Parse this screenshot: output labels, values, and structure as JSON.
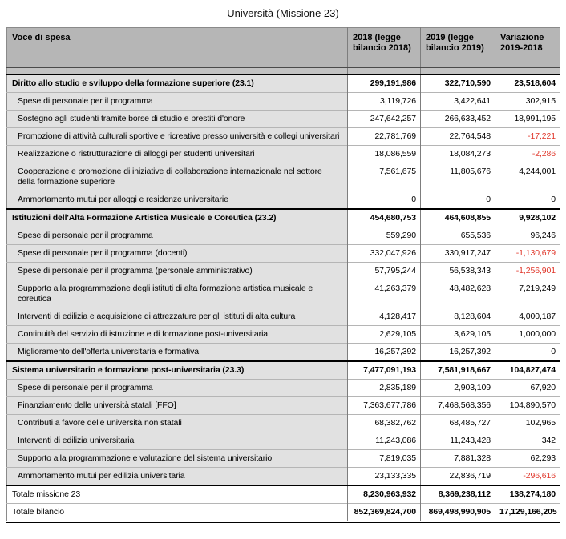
{
  "title": "Università (Missione 23)",
  "colors": {
    "negative_value": "#e0382c",
    "header_background": "#b6b6b6",
    "label_column_background": "#e1e1e1",
    "spacer_row_background": "#c2c2c2"
  },
  "table": {
    "columns": [
      "Voce di spesa",
      "2018 (legge bilancio 2018)",
      "2019 (legge bilancio 2019)",
      "Variazione 2019-2018"
    ],
    "rows": [
      {
        "type": "section",
        "label": "Diritto allo studio e sviluppo della formazione superiore (23.1)",
        "v2018": "299,191,986",
        "v2019": "322,710,590",
        "variazione": "23,518,604"
      },
      {
        "type": "item",
        "label": "Spese di personale per il programma",
        "v2018": "3,119,726",
        "v2019": "3,422,641",
        "variazione": "302,915"
      },
      {
        "type": "item",
        "label": "Sostegno agli studenti tramite borse di studio e prestiti d'onore",
        "v2018": "247,642,257",
        "v2019": "266,633,452",
        "variazione": "18,991,195"
      },
      {
        "type": "item",
        "label": "Promozione di attività culturali  sportive e ricreative presso università e collegi universitari",
        "v2018": "22,781,769",
        "v2019": "22,764,548",
        "variazione": "-17,221"
      },
      {
        "type": "item",
        "label": "Realizzazione o ristrutturazione di alloggi per studenti universitari",
        "v2018": "18,086,559",
        "v2019": "18,084,273",
        "variazione": "-2,286"
      },
      {
        "type": "item",
        "label": "Cooperazione e promozione di iniziative di collaborazione internazionale nel settore della formazione superiore",
        "v2018": "7,561,675",
        "v2019": "11,805,676",
        "variazione": "4,244,001"
      },
      {
        "type": "item",
        "label": "Ammortamento mutui per alloggi e residenze universitarie",
        "v2018": "0",
        "v2019": "0",
        "variazione": "0"
      },
      {
        "type": "section",
        "label": "Istituzioni dell'Alta Formazione Artistica Musicale e Coreutica (23.2)",
        "v2018": "454,680,753",
        "v2019": "464,608,855",
        "variazione": "9,928,102"
      },
      {
        "type": "item",
        "label": "Spese di personale per il programma",
        "v2018": "559,290",
        "v2019": "655,536",
        "variazione": "96,246"
      },
      {
        "type": "item",
        "label": "Spese di personale per il programma (docenti)",
        "v2018": "332,047,926",
        "v2019": "330,917,247",
        "variazione": "-1,130,679"
      },
      {
        "type": "item",
        "label": "Spese di personale per il programma (personale amministrativo)",
        "v2018": "57,795,244",
        "v2019": "56,538,343",
        "variazione": "-1,256,901"
      },
      {
        "type": "item",
        "label": "Supporto alla programmazione degli istituti di alta formazione artistica musicale e coreutica",
        "v2018": "41,263,379",
        "v2019": "48,482,628",
        "variazione": "7,219,249"
      },
      {
        "type": "item",
        "label": "Interventi di edilizia e acquisizione di attrezzature per gli istituti di alta cultura",
        "v2018": "4,128,417",
        "v2019": "8,128,604",
        "variazione": "4,000,187"
      },
      {
        "type": "item",
        "label": "Continuità del servizio di istruzione e di formazione post-universitaria",
        "v2018": "2,629,105",
        "v2019": "3,629,105",
        "variazione": "1,000,000"
      },
      {
        "type": "item",
        "label": "Miglioramento dell'offerta universitaria e formativa",
        "v2018": "16,257,392",
        "v2019": "16,257,392",
        "variazione": "0"
      },
      {
        "type": "section",
        "label": "Sistema universitario e formazione post-universitaria (23.3)",
        "v2018": "7,477,091,193",
        "v2019": "7,581,918,667",
        "variazione": "104,827,474"
      },
      {
        "type": "item",
        "label": "Spese di personale per il programma",
        "v2018": "2,835,189",
        "v2019": "2,903,109",
        "variazione": "67,920"
      },
      {
        "type": "item",
        "label": "Finanziamento delle università statali [FFO]",
        "v2018": "7,363,677,786",
        "v2019": "7,468,568,356",
        "variazione": "104,890,570"
      },
      {
        "type": "item",
        "label": "Contributi a favore delle università non statali",
        "v2018": "68,382,762",
        "v2019": "68,485,727",
        "variazione": "102,965"
      },
      {
        "type": "item",
        "label": "Interventi di edilizia universitaria",
        "v2018": "11,243,086",
        "v2019": "11,243,428",
        "variazione": "342"
      },
      {
        "type": "item",
        "label": "Supporto alla programmazione e valutazione del sistema universitario",
        "v2018": "7,819,035",
        "v2019": "7,881,328",
        "variazione": "62,293"
      },
      {
        "type": "item",
        "label": "Ammortamento mutui per edilizia universitaria",
        "v2018": "23,133,335",
        "v2019": "22,836,719",
        "variazione": "-296,616"
      },
      {
        "type": "total",
        "label": "Totale missione 23",
        "v2018": "8,230,963,932",
        "v2019": "8,369,238,112",
        "variazione": "138,274,180"
      },
      {
        "type": "grand",
        "label": "Totale bilancio",
        "v2018": "852,369,824,700",
        "v2019": "869,498,990,905",
        "variazione": "17,129,166,205"
      }
    ]
  }
}
